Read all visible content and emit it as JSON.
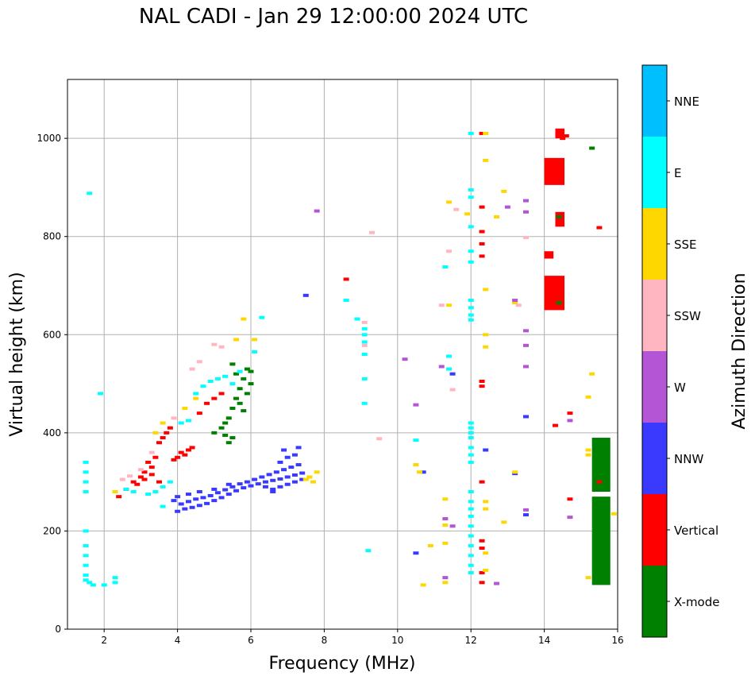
{
  "chart_data": {
    "type": "scatter",
    "title": "NAL CADI - Jan 29 12:00:00 2024 UTC",
    "xlabel": "Frequency (MHz)",
    "ylabel": "Virtual height (km)",
    "xlim": [
      1,
      16
    ],
    "ylim": [
      0,
      1120
    ],
    "xticks": [
      2,
      4,
      6,
      8,
      10,
      12,
      14,
      16
    ],
    "yticks": [
      0,
      200,
      400,
      600,
      800,
      1000
    ],
    "grid": true,
    "colorbar": {
      "label": "Azimuth Direction",
      "categories": [
        "X-mode",
        "Vertical",
        "NNW",
        "W",
        "SSW",
        "SSE",
        "E",
        "NNE"
      ],
      "colors": [
        "#008000",
        "#ff0000",
        "#3a3aff",
        "#b455d6",
        "#ffb6c1",
        "#ffd700",
        "#00ffff",
        "#00bfff"
      ]
    },
    "series": [
      {
        "name": "NNW",
        "points": [
          [
            4.0,
            240
          ],
          [
            4.2,
            245
          ],
          [
            4.4,
            248
          ],
          [
            4.6,
            252
          ],
          [
            4.8,
            256
          ],
          [
            5.0,
            262
          ],
          [
            5.2,
            268
          ],
          [
            5.4,
            275
          ],
          [
            5.6,
            282
          ],
          [
            5.8,
            288
          ],
          [
            6.0,
            292
          ],
          [
            6.2,
            296
          ],
          [
            6.4,
            300
          ],
          [
            6.6,
            303
          ],
          [
            6.8,
            306
          ],
          [
            7.0,
            310
          ],
          [
            7.2,
            314
          ],
          [
            7.4,
            318
          ],
          [
            4.1,
            255
          ],
          [
            4.3,
            260
          ],
          [
            4.5,
            265
          ],
          [
            4.7,
            268
          ],
          [
            4.9,
            272
          ],
          [
            5.1,
            278
          ],
          [
            5.3,
            284
          ],
          [
            5.5,
            290
          ],
          [
            5.7,
            296
          ],
          [
            5.9,
            300
          ],
          [
            6.1,
            305
          ],
          [
            6.3,
            310
          ],
          [
            6.5,
            315
          ],
          [
            6.7,
            320
          ],
          [
            6.9,
            325
          ],
          [
            7.1,
            330
          ],
          [
            7.3,
            335
          ],
          [
            3.9,
            262
          ],
          [
            4.0,
            270
          ],
          [
            4.3,
            275
          ],
          [
            4.6,
            280
          ],
          [
            5.0,
            285
          ],
          [
            5.4,
            295
          ],
          [
            6.6,
            285
          ],
          [
            6.8,
            290
          ],
          [
            7.0,
            295
          ],
          [
            7.2,
            300
          ],
          [
            7.4,
            305
          ],
          [
            6.8,
            340
          ],
          [
            7.0,
            350
          ],
          [
            7.2,
            355
          ],
          [
            6.9,
            365
          ],
          [
            7.3,
            370
          ],
          [
            6.6,
            280
          ],
          [
            6.4,
            290
          ],
          [
            11.5,
            520
          ],
          [
            12.4,
            365
          ],
          [
            13.2,
            317
          ],
          [
            13.5,
            433
          ],
          [
            13.5,
            233
          ],
          [
            10.5,
            155
          ],
          [
            10.7,
            320
          ],
          [
            7.5,
            680
          ]
        ]
      },
      {
        "name": "Vertical",
        "points": [
          [
            2.4,
            270
          ],
          [
            2.6,
            285
          ],
          [
            2.8,
            300
          ],
          [
            3.0,
            310
          ],
          [
            3.1,
            320
          ],
          [
            3.2,
            340
          ],
          [
            3.3,
            330
          ],
          [
            3.4,
            350
          ],
          [
            3.5,
            380
          ],
          [
            3.6,
            390
          ],
          [
            3.7,
            400
          ],
          [
            3.8,
            410
          ],
          [
            4.0,
            350
          ],
          [
            4.1,
            360
          ],
          [
            4.2,
            355
          ],
          [
            4.3,
            365
          ],
          [
            3.9,
            345
          ],
          [
            4.4,
            370
          ],
          [
            4.6,
            440
          ],
          [
            4.8,
            460
          ],
          [
            5.0,
            470
          ],
          [
            5.2,
            480
          ],
          [
            2.9,
            295
          ],
          [
            3.1,
            305
          ],
          [
            3.3,
            315
          ],
          [
            3.5,
            300
          ],
          [
            12.3,
            1010
          ],
          [
            12.3,
            860
          ],
          [
            12.3,
            810
          ],
          [
            12.3,
            785
          ],
          [
            12.3,
            760
          ],
          [
            12.3,
            505
          ],
          [
            12.3,
            495
          ],
          [
            12.3,
            300
          ],
          [
            12.3,
            180
          ],
          [
            12.3,
            165
          ],
          [
            12.3,
            115
          ],
          [
            12.3,
            95
          ],
          [
            8.6,
            713
          ],
          [
            14.7,
            440
          ],
          [
            14.3,
            415
          ],
          [
            14.7,
            265
          ],
          [
            15.5,
            818
          ],
          [
            14.5,
            1000
          ],
          [
            14.6,
            1005
          ],
          [
            15.5,
            300
          ]
        ]
      },
      {
        "name": "X-mode",
        "points": [
          [
            5.4,
            430
          ],
          [
            5.5,
            450
          ],
          [
            5.6,
            470
          ],
          [
            5.7,
            490
          ],
          [
            5.8,
            510
          ],
          [
            5.9,
            530
          ],
          [
            6.0,
            500
          ],
          [
            5.3,
            420
          ],
          [
            5.2,
            410
          ],
          [
            5.6,
            520
          ],
          [
            5.5,
            390
          ],
          [
            5.4,
            380
          ],
          [
            5.7,
            460
          ],
          [
            5.9,
            480
          ],
          [
            5.0,
            400
          ],
          [
            5.3,
            395
          ],
          [
            5.8,
            445
          ],
          [
            5.5,
            540
          ],
          [
            6.0,
            525
          ],
          [
            15.3,
            980
          ],
          [
            14.4,
            840
          ],
          [
            14.4,
            665
          ]
        ]
      },
      {
        "name": "E",
        "points": [
          [
            1.5,
            340
          ],
          [
            1.5,
            320
          ],
          [
            1.5,
            300
          ],
          [
            1.5,
            280
          ],
          [
            1.5,
            200
          ],
          [
            1.5,
            170
          ],
          [
            1.5,
            150
          ],
          [
            1.5,
            130
          ],
          [
            1.5,
            110
          ],
          [
            1.5,
            100
          ],
          [
            1.6,
            95
          ],
          [
            1.7,
            90
          ],
          [
            1.6,
            888
          ],
          [
            1.9,
            480
          ],
          [
            2.0,
            90
          ],
          [
            2.3,
            95
          ],
          [
            2.3,
            105
          ],
          [
            2.6,
            285
          ],
          [
            2.8,
            280
          ],
          [
            3.2,
            275
          ],
          [
            3.4,
            280
          ],
          [
            3.6,
            290
          ],
          [
            3.8,
            300
          ],
          [
            4.1,
            420
          ],
          [
            4.3,
            425
          ],
          [
            4.5,
            480
          ],
          [
            4.7,
            495
          ],
          [
            4.9,
            505
          ],
          [
            5.1,
            510
          ],
          [
            5.3,
            515
          ],
          [
            5.5,
            500
          ],
          [
            5.7,
            525
          ],
          [
            6.1,
            565
          ],
          [
            6.3,
            635
          ],
          [
            3.6,
            250
          ],
          [
            8.6,
            670
          ],
          [
            8.9,
            632
          ],
          [
            9.1,
            612
          ],
          [
            9.1,
            600
          ],
          [
            9.1,
            585
          ],
          [
            9.1,
            560
          ],
          [
            9.1,
            510
          ],
          [
            9.1,
            460
          ],
          [
            9.2,
            160
          ],
          [
            10.5,
            385
          ],
          [
            11.3,
            738
          ],
          [
            11.4,
            556
          ],
          [
            11.4,
            530
          ],
          [
            12.0,
            1010
          ],
          [
            12.0,
            895
          ],
          [
            12.0,
            880
          ],
          [
            12.0,
            820
          ],
          [
            12.0,
            770
          ],
          [
            12.0,
            748
          ],
          [
            12.0,
            670
          ],
          [
            12.0,
            655
          ],
          [
            12.0,
            640
          ],
          [
            12.0,
            630
          ],
          [
            12.0,
            420
          ],
          [
            12.0,
            410
          ],
          [
            12.0,
            400
          ],
          [
            12.0,
            390
          ],
          [
            12.0,
            370
          ],
          [
            12.0,
            355
          ],
          [
            12.0,
            340
          ],
          [
            12.0,
            280
          ],
          [
            12.0,
            260
          ],
          [
            12.0,
            245
          ],
          [
            12.0,
            230
          ],
          [
            12.0,
            210
          ],
          [
            12.0,
            190
          ],
          [
            12.0,
            170
          ],
          [
            12.0,
            150
          ],
          [
            12.0,
            130
          ],
          [
            12.0,
            115
          ]
        ]
      },
      {
        "name": "SSE",
        "points": [
          [
            2.3,
            280
          ],
          [
            3.4,
            400
          ],
          [
            3.6,
            420
          ],
          [
            4.2,
            450
          ],
          [
            4.5,
            470
          ],
          [
            5.6,
            590
          ],
          [
            5.8,
            632
          ],
          [
            6.1,
            590
          ],
          [
            7.8,
            320
          ],
          [
            7.7,
            300
          ],
          [
            7.6,
            310
          ],
          [
            7.5,
            305
          ],
          [
            10.5,
            335
          ],
          [
            10.6,
            320
          ],
          [
            10.7,
            90
          ],
          [
            10.9,
            170
          ],
          [
            11.3,
            265
          ],
          [
            11.3,
            212
          ],
          [
            11.3,
            175
          ],
          [
            11.3,
            95
          ],
          [
            11.4,
            870
          ],
          [
            11.4,
            660
          ],
          [
            11.9,
            846
          ],
          [
            12.4,
            1010
          ],
          [
            12.4,
            955
          ],
          [
            12.4,
            692
          ],
          [
            12.4,
            600
          ],
          [
            12.4,
            575
          ],
          [
            12.4,
            260
          ],
          [
            12.4,
            245
          ],
          [
            12.4,
            155
          ],
          [
            12.4,
            120
          ],
          [
            12.7,
            840
          ],
          [
            12.9,
            892
          ],
          [
            12.9,
            218
          ],
          [
            13.2,
            665
          ],
          [
            13.2,
            320
          ],
          [
            15.3,
            520
          ],
          [
            15.2,
            473
          ],
          [
            15.2,
            365
          ],
          [
            15.2,
            355
          ],
          [
            15.2,
            105
          ],
          [
            15.9,
            235
          ]
        ]
      },
      {
        "name": "SSW",
        "points": [
          [
            2.5,
            305
          ],
          [
            2.7,
            312
          ],
          [
            3.0,
            325
          ],
          [
            3.3,
            360
          ],
          [
            3.9,
            430
          ],
          [
            4.4,
            530
          ],
          [
            4.6,
            545
          ],
          [
            5.0,
            580
          ],
          [
            5.2,
            575
          ],
          [
            9.1,
            625
          ],
          [
            9.1,
            578
          ],
          [
            9.3,
            808
          ],
          [
            9.5,
            388
          ],
          [
            11.4,
            770
          ],
          [
            11.2,
            660
          ],
          [
            11.5,
            488
          ],
          [
            11.6,
            855
          ],
          [
            13.3,
            660
          ],
          [
            13.5,
            798
          ]
        ]
      },
      {
        "name": "W",
        "points": [
          [
            10.2,
            550
          ],
          [
            10.5,
            457
          ],
          [
            11.2,
            535
          ],
          [
            11.3,
            225
          ],
          [
            11.3,
            105
          ],
          [
            11.5,
            210
          ],
          [
            12.7,
            93
          ],
          [
            13.0,
            860
          ],
          [
            13.2,
            670
          ],
          [
            13.5,
            608
          ],
          [
            13.5,
            578
          ],
          [
            13.5,
            535
          ],
          [
            13.5,
            243
          ],
          [
            13.5,
            873
          ],
          [
            13.5,
            850
          ],
          [
            14.7,
            425
          ],
          [
            14.7,
            228
          ],
          [
            7.8,
            852
          ]
        ]
      }
    ],
    "blocks": [
      {
        "name": "Vertical",
        "x": [
          14.3,
          14.55
        ],
        "y": [
          1000,
          1020
        ]
      },
      {
        "name": "Vertical",
        "x": [
          14.0,
          14.55
        ],
        "y": [
          905,
          960
        ]
      },
      {
        "name": "Vertical",
        "x": [
          14.3,
          14.55
        ],
        "y": [
          820,
          850
        ]
      },
      {
        "name": "Vertical",
        "x": [
          14.0,
          14.25
        ],
        "y": [
          755,
          770
        ]
      },
      {
        "name": "Vertical",
        "x": [
          14.0,
          14.55
        ],
        "y": [
          650,
          720
        ]
      },
      {
        "name": "X-mode",
        "x": [
          15.3,
          15.8
        ],
        "y": [
          90,
          270
        ]
      },
      {
        "name": "X-mode",
        "x": [
          15.3,
          15.8
        ],
        "y": [
          280,
          390
        ]
      }
    ]
  }
}
